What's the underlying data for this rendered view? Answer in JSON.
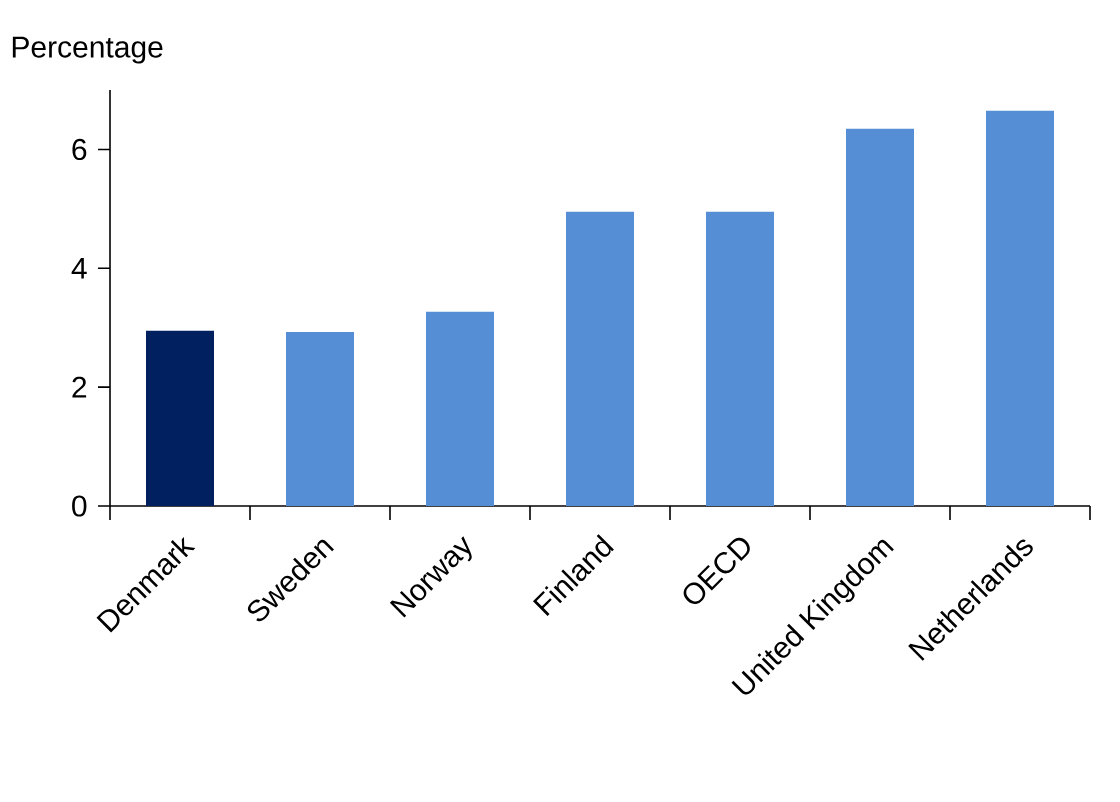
{
  "chart_data": {
    "type": "bar",
    "ylabel": "Percentage",
    "categories": [
      "Denmark",
      "Sweden",
      "Norway",
      "Finland",
      "OECD",
      "United Kingdom",
      "Netherlands"
    ],
    "values": [
      2.95,
      2.93,
      3.27,
      4.95,
      4.95,
      6.35,
      6.65
    ],
    "colors": [
      "#002060",
      "#558ed5",
      "#558ed5",
      "#558ed5",
      "#558ed5",
      "#558ed5",
      "#558ed5"
    ],
    "ylim": [
      0,
      7
    ],
    "yticks": [
      0,
      2,
      4,
      6
    ],
    "grid": false
  }
}
